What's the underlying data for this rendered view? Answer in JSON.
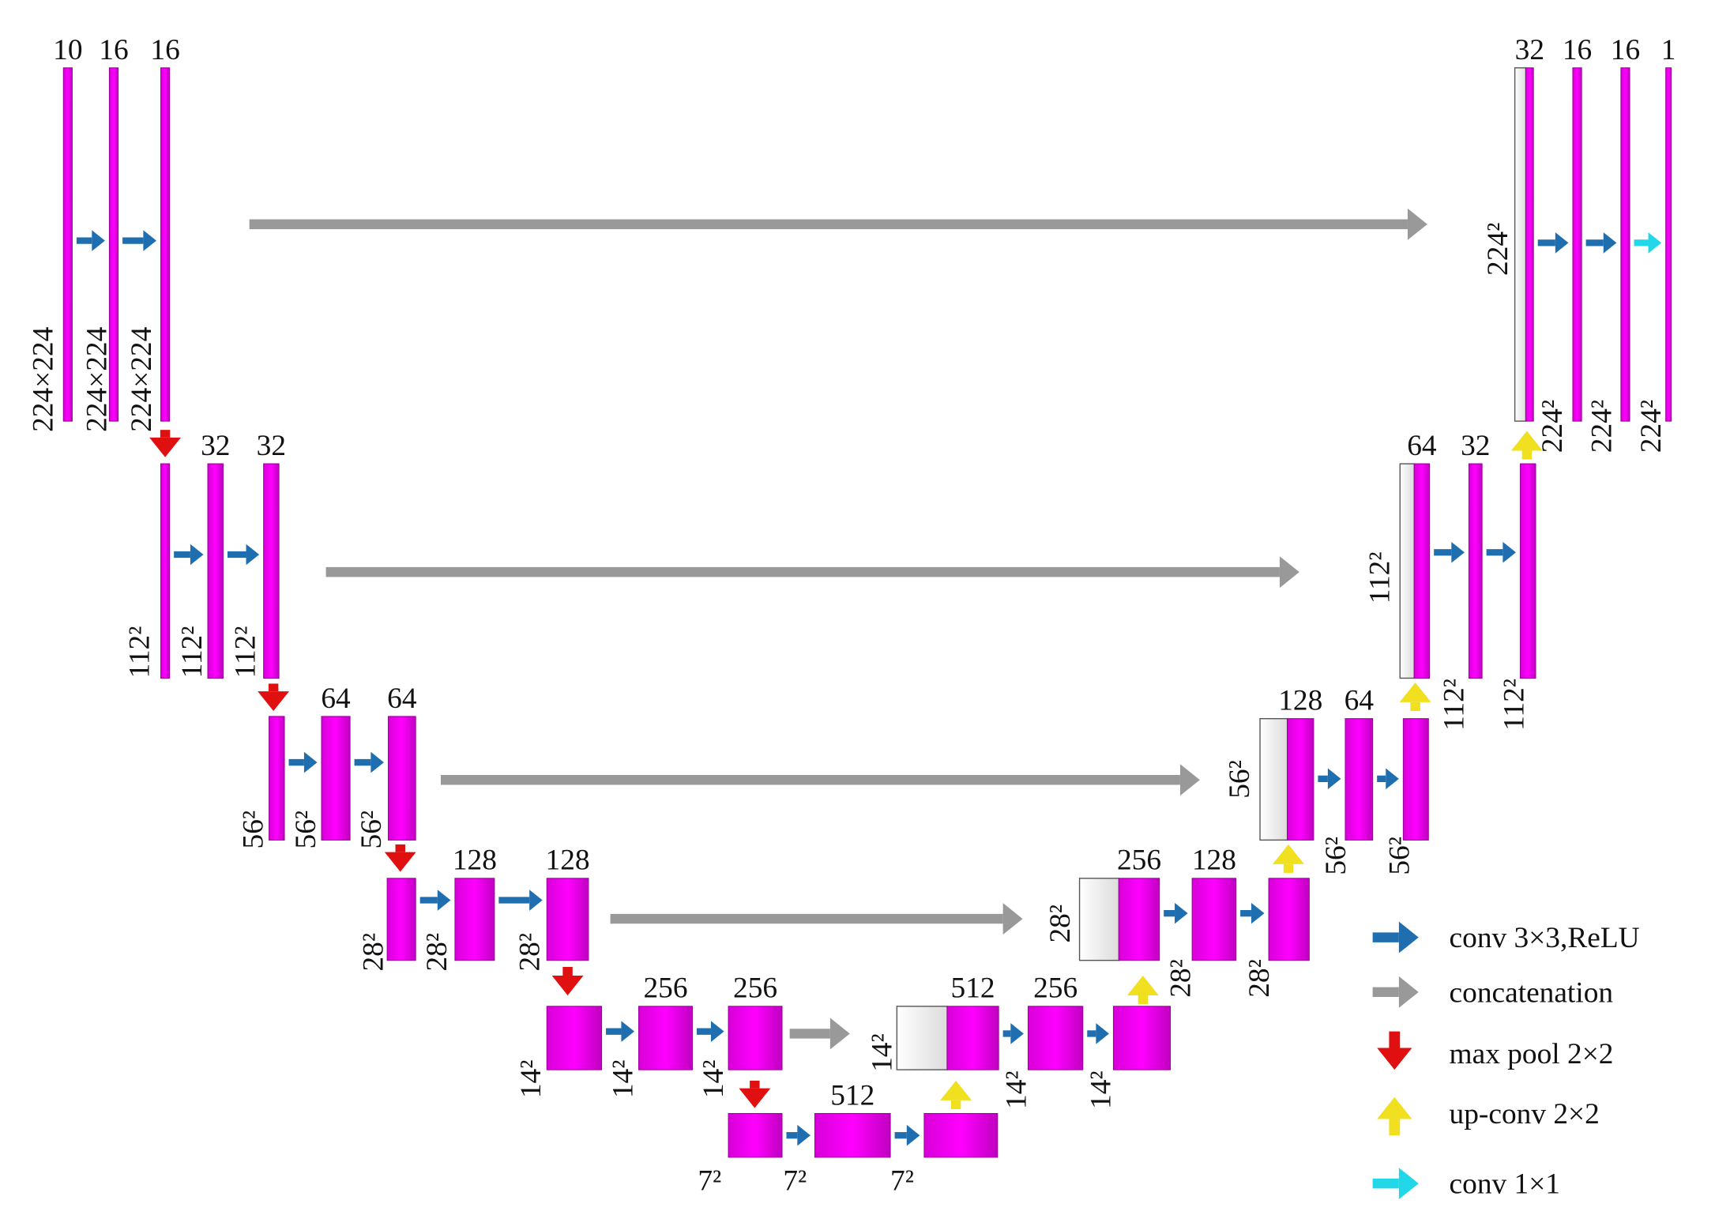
{
  "blocks": [
    {
      "channels": "10",
      "size": "224×224"
    },
    {
      "channels": "16",
      "size": "224×224"
    },
    {
      "channels": "16",
      "size": "224×224"
    },
    {
      "size": "112²"
    },
    {
      "channels": "32",
      "size": "112²"
    },
    {
      "channels": "32",
      "size": "112²"
    },
    {
      "size": "56²"
    },
    {
      "channels": "64",
      "size": "56²"
    },
    {
      "channels": "64",
      "size": "56²"
    },
    {
      "size": "28²"
    },
    {
      "channels": "128",
      "size": "28²"
    },
    {
      "channels": "128",
      "size": "28²"
    },
    {
      "size": "14²"
    },
    {
      "channels": "256",
      "size": "14²"
    },
    {
      "channels": "256",
      "size": "14²"
    },
    {
      "size": "7²"
    },
    {
      "channels": "512",
      "size": "7²"
    },
    {
      "size": "7²"
    },
    {
      "channels": "512",
      "size": "14²"
    },
    {
      "channels": "256",
      "size": "14²"
    },
    {
      "size": "14²"
    },
    {
      "channels": "256",
      "size": "28²"
    },
    {
      "channels": "128",
      "size": "28²"
    },
    {
      "size": "28²"
    },
    {
      "channels": "128",
      "size": "56²"
    },
    {
      "channels": "64",
      "size": "56²"
    },
    {
      "size": "56²"
    },
    {
      "channels": "64",
      "size": "112²"
    },
    {
      "channels": "32",
      "size": "112²"
    },
    {
      "size": "112²"
    },
    {
      "channels": "32",
      "size": "224²"
    },
    {
      "channels": "16",
      "size": "224²"
    },
    {
      "channels": "16",
      "size": "224²"
    },
    {
      "channels": "1",
      "size": "224²"
    }
  ],
  "legend": [
    "conv 3×3,ReLU",
    "concatenation",
    "max pool 2×2",
    "up-conv 2×2",
    "conv 1×1"
  ]
}
